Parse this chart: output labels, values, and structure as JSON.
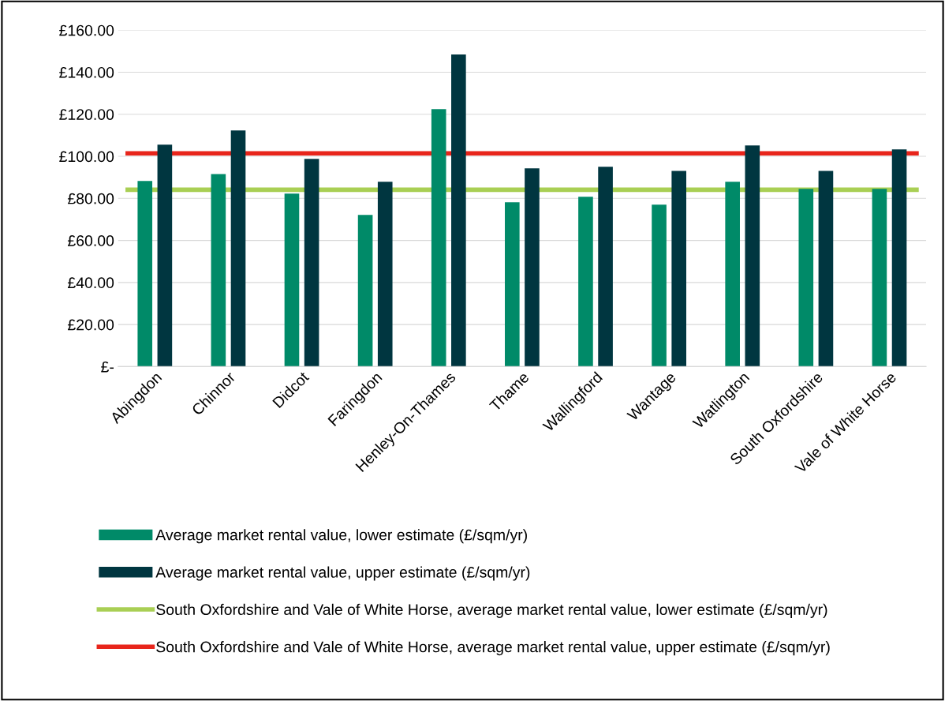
{
  "chart_data": {
    "type": "bar",
    "categories": [
      "Abingdon",
      "Chinnor",
      "Didcot",
      "Faringdon",
      "Henley-On-Thames",
      "Thame",
      "Wallingford",
      "Wantage",
      "Watlington",
      "South Oxfordshire",
      "Vale of White Horse"
    ],
    "series": [
      {
        "name": "Average market rental value, lower estimate (£/sqm/yr)",
        "color": "#008a68",
        "values": [
          88.3,
          91.6,
          82.3,
          72.1,
          122.4,
          78.1,
          80.8,
          77.0,
          87.9,
          84.5,
          84.5
        ]
      },
      {
        "name": "Average market rental value, upper estimate (£/sqm/yr)",
        "color": "#003640",
        "values": [
          105.5,
          112.3,
          98.8,
          87.9,
          148.4,
          94.3,
          95.0,
          93.1,
          105.2,
          93.1,
          103.3
        ]
      }
    ],
    "ref_lines": [
      {
        "axis": "y",
        "value": 84.1,
        "label": "South Oxfordshire and Vale of White Horse, average market rental value, lower estimate (£/sqm/yr)",
        "color": "#a9cf54"
      },
      {
        "axis": "y",
        "value": 101.4,
        "label": "South Oxfordshire and Vale of White Horse, average market rental value, upper estimate (£/sqm/yr)",
        "color": "#e8251b"
      }
    ],
    "ylim": [
      0,
      160
    ],
    "yticks": [
      {
        "value": 0,
        "label": "£-"
      },
      {
        "value": 20,
        "label": "£20.00"
      },
      {
        "value": 40,
        "label": "£40.00"
      },
      {
        "value": 60,
        "label": "£60.00"
      },
      {
        "value": 80,
        "label": "£80.00"
      },
      {
        "value": 100,
        "label": "£100.00"
      },
      {
        "value": 120,
        "label": "£120.00"
      },
      {
        "value": 140,
        "label": "£140.00"
      },
      {
        "value": 160,
        "label": "£160.00"
      }
    ],
    "grid": "y",
    "legend": "bottom"
  }
}
